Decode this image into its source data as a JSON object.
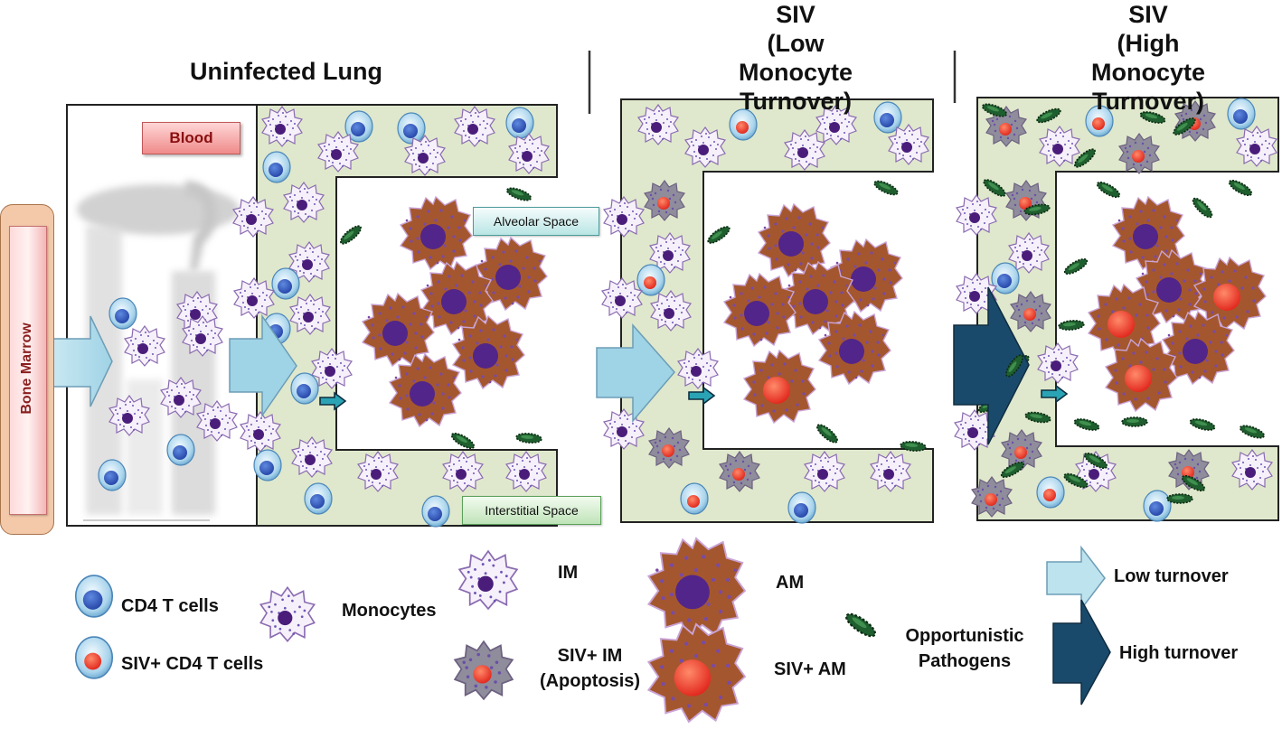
{
  "titles": {
    "uninfected": "Uninfected Lung",
    "siv_low_1": "SIV",
    "siv_low_2": "(Low Monocyte",
    "siv_low_3": "Turnover)",
    "siv_high_1": "SIV",
    "siv_high_2": "(High Monocyte",
    "siv_high_3": "Turnover)"
  },
  "tags": {
    "blood": "Blood",
    "bone_marrow": "Bone Marrow",
    "alveolar_space": "Alveolar Space",
    "interstitial_space": "Interstitial Space"
  },
  "legend": {
    "cd4": "CD4 T cells",
    "siv_cd4": "SIV+ CD4 T cells",
    "monocytes": "Monocytes",
    "im": "IM",
    "siv_im_1": "SIV+ IM",
    "siv_im_2": "(Apoptosis)",
    "am": "AM",
    "siv_am": "SIV+ AM",
    "pathogens_1": "Opportunistic",
    "pathogens_2": "Pathogens",
    "low_turnover": "Low turnover",
    "high_turnover": "High turnover"
  },
  "colors": {
    "tissue": "#dfe8cc",
    "am_fill": "#a4572e",
    "nucleus": "#5b2a8c",
    "siv_red": "#f03a2a",
    "light_arrow": "#bde3ee",
    "dark_arrow": "#1a4a6b",
    "teal": "#2aa4b4",
    "pathogen": "#1f5e2e"
  }
}
